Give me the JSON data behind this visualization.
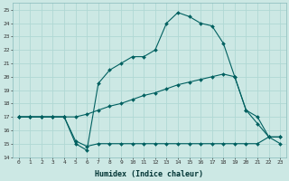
{
  "xlabel": "Humidex (Indice chaleur)",
  "xlim": [
    -0.5,
    23.5
  ],
  "ylim": [
    14,
    25.5
  ],
  "yticks": [
    14,
    15,
    16,
    17,
    18,
    19,
    20,
    21,
    22,
    23,
    24,
    25
  ],
  "xticks": [
    0,
    1,
    2,
    3,
    4,
    5,
    6,
    7,
    8,
    9,
    10,
    11,
    12,
    13,
    14,
    15,
    16,
    17,
    18,
    19,
    20,
    21,
    22,
    23
  ],
  "bg_color": "#cce8e4",
  "grid_color": "#b0d8d4",
  "line_color": "#006060",
  "curve1_x": [
    0,
    1,
    2,
    3,
    4,
    5,
    6,
    7,
    8,
    9,
    10,
    11,
    12,
    13,
    14,
    15,
    16,
    17,
    18,
    19,
    20,
    21,
    22,
    23
  ],
  "curve1_y": [
    17.0,
    17.0,
    17.0,
    17.0,
    17.0,
    15.0,
    14.5,
    19.5,
    20.5,
    21.0,
    21.5,
    21.5,
    22.0,
    24.0,
    24.8,
    24.5,
    24.0,
    23.8,
    22.5,
    20.0,
    17.5,
    17.0,
    15.5,
    15.0
  ],
  "curve2_x": [
    0,
    1,
    2,
    3,
    4,
    5,
    6,
    7,
    8,
    9,
    10,
    11,
    12,
    13,
    14,
    15,
    16,
    17,
    18,
    19,
    20,
    21,
    22,
    23
  ],
  "curve2_y": [
    17.0,
    17.0,
    17.0,
    17.0,
    17.0,
    17.0,
    17.2,
    17.5,
    17.8,
    18.0,
    18.3,
    18.6,
    18.8,
    19.1,
    19.4,
    19.6,
    19.8,
    20.0,
    20.2,
    20.0,
    17.5,
    16.5,
    15.5,
    15.5
  ],
  "curve3_x": [
    0,
    1,
    2,
    3,
    4,
    5,
    6,
    7,
    8,
    9,
    10,
    11,
    12,
    13,
    14,
    15,
    16,
    17,
    18,
    19,
    20,
    21,
    22,
    23
  ],
  "curve3_y": [
    17.0,
    17.0,
    17.0,
    17.0,
    17.0,
    15.2,
    14.8,
    15.0,
    15.0,
    15.0,
    15.0,
    15.0,
    15.0,
    15.0,
    15.0,
    15.0,
    15.0,
    15.0,
    15.0,
    15.0,
    15.0,
    15.0,
    15.5,
    15.5
  ]
}
